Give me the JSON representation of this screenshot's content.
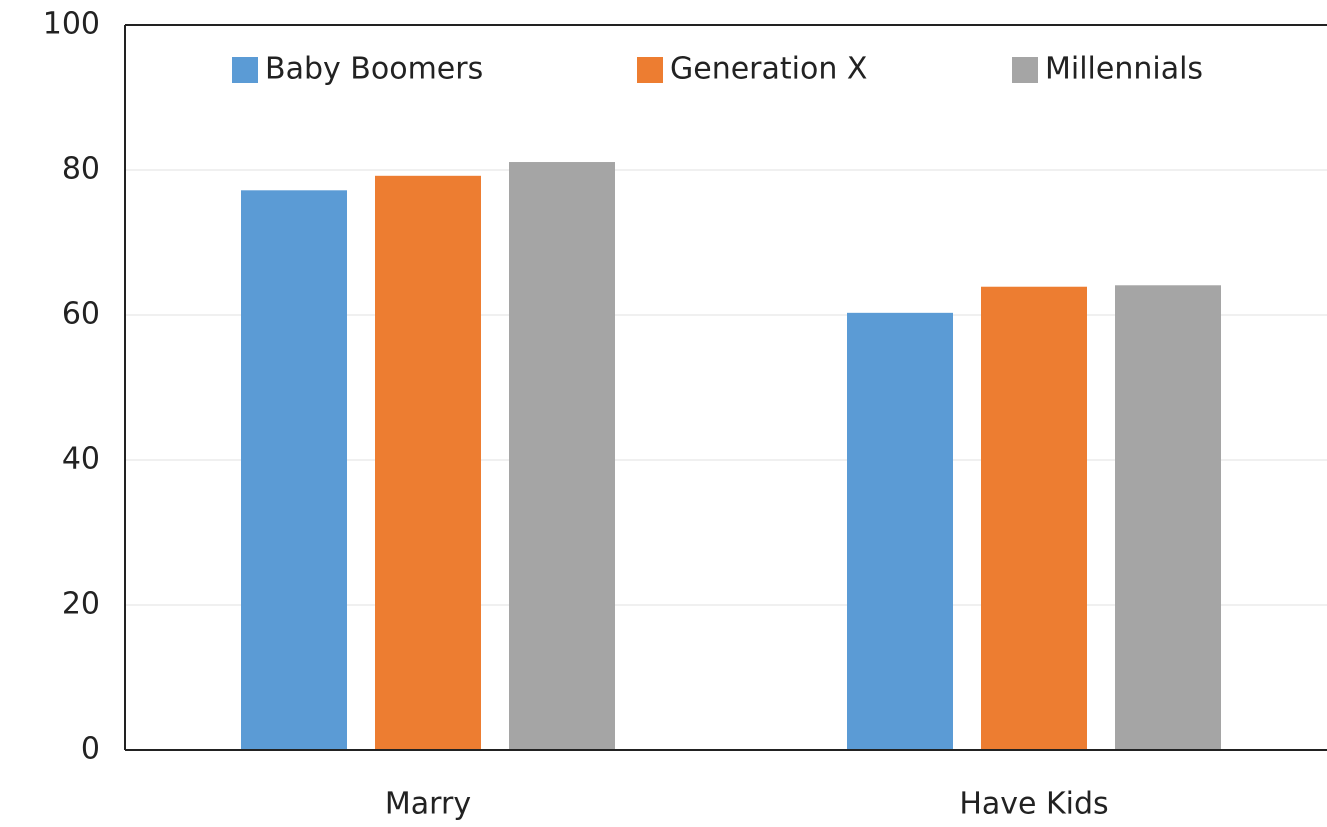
{
  "chart_data": {
    "type": "bar",
    "categories": [
      "Marry",
      "Have Kids"
    ],
    "series": [
      {
        "name": "Baby Boomers",
        "color": "#5b9bd5",
        "values": [
          77.2,
          60.3
        ]
      },
      {
        "name": "Generation X",
        "color": "#ed7d31",
        "values": [
          79.2,
          63.9
        ]
      },
      {
        "name": "Millennials",
        "color": "#a5a5a5",
        "values": [
          81.1,
          64.1
        ]
      }
    ],
    "ylim": [
      0,
      100
    ],
    "yticks": [
      0,
      20,
      40,
      60,
      80,
      100
    ],
    "grid": true,
    "legend": "top"
  }
}
